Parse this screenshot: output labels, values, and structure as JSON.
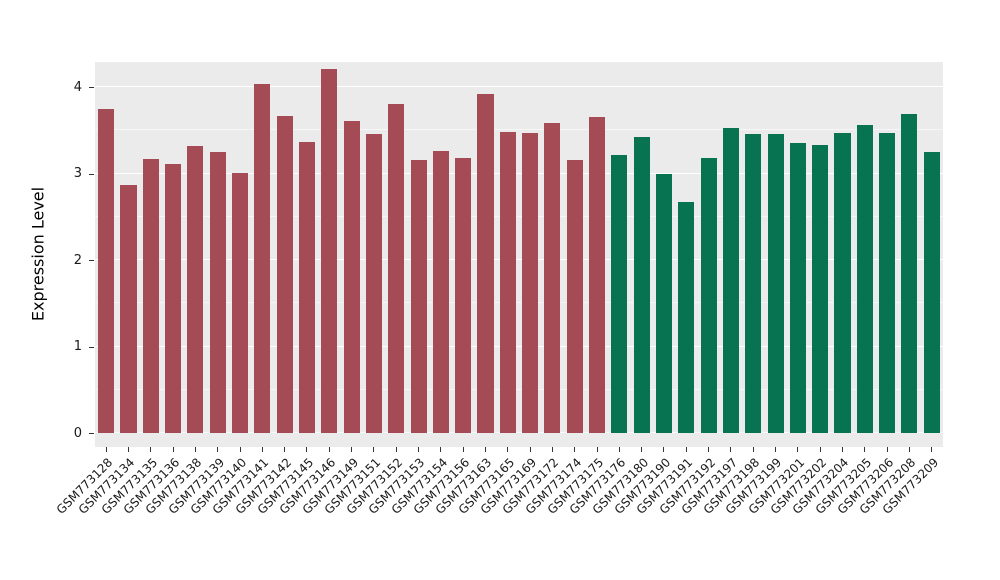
{
  "chart_data": {
    "type": "bar",
    "title": "",
    "xlabel": "",
    "ylabel": "Expression Level",
    "ylim": [
      0,
      4.29
    ],
    "yticks": [
      0,
      1,
      2,
      3,
      4
    ],
    "grid": "on",
    "legend": "none",
    "panel_background": "#EBEBEB",
    "grid_color": "#FFFFFF",
    "colors": {
      "red": "#A54B55",
      "green": "#087350"
    },
    "bars": [
      {
        "label": "GSM773128",
        "value": 3.75,
        "group": "red"
      },
      {
        "label": "GSM773134",
        "value": 2.87,
        "group": "red"
      },
      {
        "label": "GSM773135",
        "value": 3.17,
        "group": "red"
      },
      {
        "label": "GSM773136",
        "value": 3.11,
        "group": "red"
      },
      {
        "label": "GSM773138",
        "value": 3.32,
        "group": "red"
      },
      {
        "label": "GSM773139",
        "value": 3.25,
        "group": "red"
      },
      {
        "label": "GSM773140",
        "value": 3.01,
        "group": "red"
      },
      {
        "label": "GSM773141",
        "value": 4.04,
        "group": "red"
      },
      {
        "label": "GSM773142",
        "value": 3.67,
        "group": "red"
      },
      {
        "label": "GSM773145",
        "value": 3.37,
        "group": "red"
      },
      {
        "label": "GSM773146",
        "value": 4.21,
        "group": "red"
      },
      {
        "label": "GSM773149",
        "value": 3.61,
        "group": "red"
      },
      {
        "label": "GSM773151",
        "value": 3.46,
        "group": "red"
      },
      {
        "label": "GSM773152",
        "value": 3.8,
        "group": "red"
      },
      {
        "label": "GSM773153",
        "value": 3.16,
        "group": "red"
      },
      {
        "label": "GSM773154",
        "value": 3.26,
        "group": "red"
      },
      {
        "label": "GSM773156",
        "value": 3.18,
        "group": "red"
      },
      {
        "label": "GSM773163",
        "value": 3.92,
        "group": "red"
      },
      {
        "label": "GSM773165",
        "value": 3.48,
        "group": "red"
      },
      {
        "label": "GSM773169",
        "value": 3.47,
        "group": "red"
      },
      {
        "label": "GSM773172",
        "value": 3.59,
        "group": "red"
      },
      {
        "label": "GSM773174",
        "value": 3.16,
        "group": "red"
      },
      {
        "label": "GSM773175",
        "value": 3.65,
        "group": "red"
      },
      {
        "label": "GSM773176",
        "value": 3.21,
        "group": "green"
      },
      {
        "label": "GSM773180",
        "value": 3.42,
        "group": "green"
      },
      {
        "label": "GSM773190",
        "value": 3.0,
        "group": "green"
      },
      {
        "label": "GSM773191",
        "value": 2.67,
        "group": "green"
      },
      {
        "label": "GSM773192",
        "value": 3.18,
        "group": "green"
      },
      {
        "label": "GSM773197",
        "value": 3.53,
        "group": "green"
      },
      {
        "label": "GSM773198",
        "value": 3.46,
        "group": "green"
      },
      {
        "label": "GSM773199",
        "value": 3.46,
        "group": "green"
      },
      {
        "label": "GSM773201",
        "value": 3.35,
        "group": "green"
      },
      {
        "label": "GSM773202",
        "value": 3.33,
        "group": "green"
      },
      {
        "label": "GSM773204",
        "value": 3.47,
        "group": "green"
      },
      {
        "label": "GSM773205",
        "value": 3.56,
        "group": "green"
      },
      {
        "label": "GSM773206",
        "value": 3.47,
        "group": "green"
      },
      {
        "label": "GSM773208",
        "value": 3.69,
        "group": "green"
      },
      {
        "label": "GSM773209",
        "value": 3.25,
        "group": "green"
      }
    ]
  }
}
